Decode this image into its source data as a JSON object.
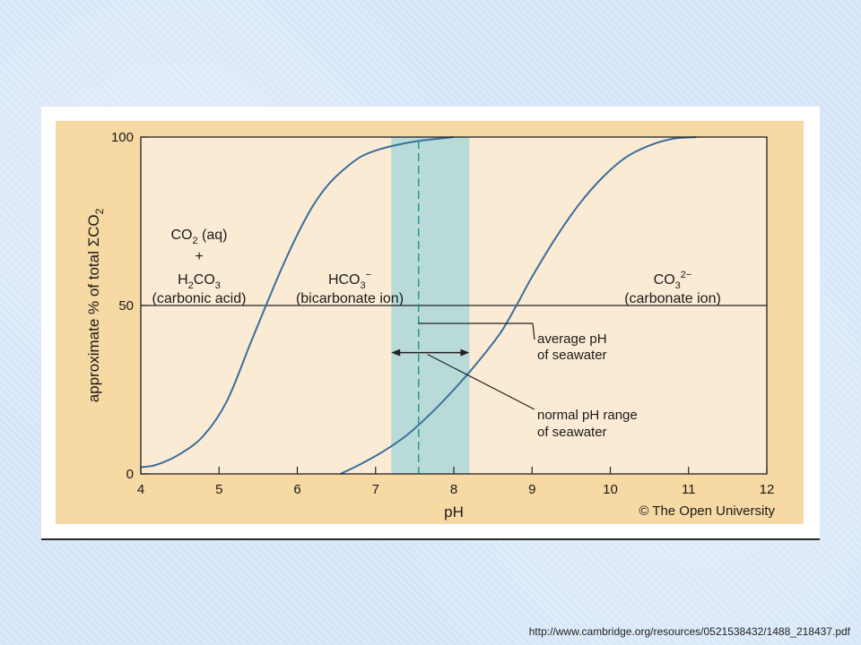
{
  "chart_data": {
    "type": "line",
    "xlabel": "pH",
    "ylabel": "approximate % of total ΣCO",
    "ylabel_sub": "2",
    "xlim": [
      4,
      12
    ],
    "ylim": [
      0,
      100
    ],
    "x_ticks": [
      4,
      5,
      6,
      7,
      8,
      9,
      10,
      11,
      12
    ],
    "y_ticks": [
      0,
      50,
      100
    ],
    "series": [
      {
        "points": [
          [
            4.0,
            2.0
          ],
          [
            4.2,
            2.7
          ],
          [
            4.5,
            5.9
          ],
          [
            4.8,
            11.3
          ],
          [
            5.1,
            21.6
          ],
          [
            5.4,
            38.7
          ],
          [
            5.6,
            50.0
          ],
          [
            5.8,
            61.0
          ],
          [
            6.0,
            71.0
          ],
          [
            6.2,
            79.6
          ],
          [
            6.4,
            86.0
          ],
          [
            6.6,
            90.5
          ],
          [
            6.8,
            94.0
          ],
          [
            7.0,
            96.0
          ],
          [
            7.3,
            97.8
          ],
          [
            7.6,
            99.0
          ],
          [
            8.0,
            100.0
          ]
        ]
      },
      {
        "points": [
          [
            6.55,
            0.0
          ],
          [
            6.8,
            2.8
          ],
          [
            7.1,
            6.7
          ],
          [
            7.4,
            11.5
          ],
          [
            7.7,
            17.8
          ],
          [
            8.0,
            25.0
          ],
          [
            8.3,
            33.0
          ],
          [
            8.6,
            42.0
          ],
          [
            8.8,
            50.0
          ],
          [
            9.0,
            58.5
          ],
          [
            9.3,
            70.0
          ],
          [
            9.6,
            80.0
          ],
          [
            9.9,
            88.0
          ],
          [
            10.2,
            94.0
          ],
          [
            10.5,
            97.5
          ],
          [
            10.8,
            99.5
          ],
          [
            11.1,
            100.0
          ]
        ]
      }
    ],
    "band": {
      "x_range": [
        7.2,
        8.2
      ],
      "color": "#b8dbd9"
    },
    "average_ph": 7.55,
    "range_arrow_y": 36,
    "regions": [
      {
        "id": "acid",
        "lines": [
          "CO",
          "+",
          "H",
          "(carbonic acid)"
        ],
        "co2_tail": " (aq)",
        "sub2": "2",
        "h2co3_tail": "CO",
        "sub3": "3"
      },
      {
        "id": "bicarb",
        "species": "HCO",
        "sub": "3",
        "sup": "−",
        "desc": "(bicarbonate ion)"
      },
      {
        "id": "carb",
        "species": "CO",
        "sub": "3",
        "sup": "2−",
        "desc": "(carbonate ion)"
      }
    ],
    "annotations": {
      "average_line1": "average pH",
      "average_line2": "of seawater",
      "range_line1": "normal pH range",
      "range_line2": "of seawater"
    },
    "copyright": "© The Open University",
    "colors": {
      "curve": "#3a6e9c",
      "axis": "#222222",
      "dashed": "#2a9a8e",
      "plot_bg": "#fbebd4",
      "frame_bg": "#f7d9a3"
    }
  },
  "footer": {
    "source_url": "http://www.cambridge.org/resources/0521538432/1488_218437.pdf"
  }
}
